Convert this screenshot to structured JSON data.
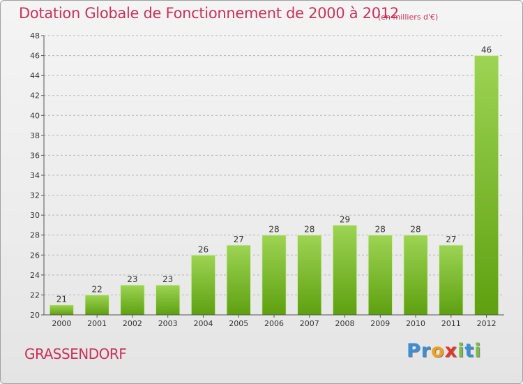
{
  "header": {
    "title": "Dotation Globale de Fonctionnement de 2000 à 2012",
    "subtitle": "(en milliers d'€)"
  },
  "footer": {
    "city": "GRASSENDORF",
    "logo_letters": [
      {
        "char": "P",
        "color": "#3a8fd6"
      },
      {
        "char": "r",
        "color": "#3a8fd6"
      },
      {
        "char": "o",
        "color": "#f0a01e"
      },
      {
        "char": "x",
        "color": "#e8342a"
      },
      {
        "char": "i",
        "color": "#77c043"
      },
      {
        "char": "t",
        "color": "#3a8fd6"
      },
      {
        "char": "i",
        "color": "#77c043"
      }
    ]
  },
  "chart_data": {
    "type": "bar",
    "categories": [
      "2000",
      "2001",
      "2002",
      "2003",
      "2004",
      "2005",
      "2006",
      "2007",
      "2008",
      "2009",
      "2010",
      "2011",
      "2012"
    ],
    "values": [
      21,
      22,
      23,
      23,
      26,
      27,
      28,
      28,
      29,
      28,
      28,
      27,
      46
    ],
    "ylim": [
      20,
      48
    ],
    "yticks": [
      "20",
      "22",
      "24",
      "26",
      "28",
      "30",
      "32",
      "34",
      "36",
      "38",
      "40",
      "42",
      "44",
      "46",
      "48"
    ],
    "grid": true,
    "bar_color_top": "#9dd454",
    "bar_color_bottom": "#5ea010"
  }
}
